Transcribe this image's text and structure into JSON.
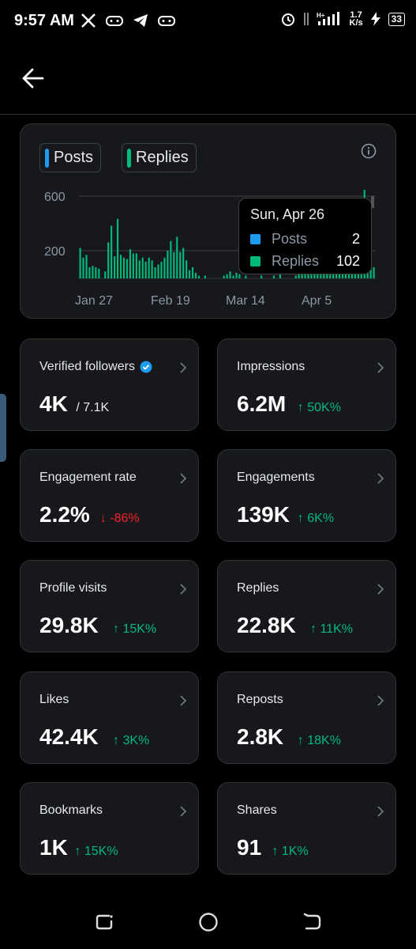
{
  "status_bar": {
    "time": "9:57 AM",
    "net_speed_top": "1.7",
    "net_speed_bottom": "K/s",
    "battery": "33"
  },
  "chart": {
    "legend": [
      {
        "label": "Posts",
        "color": "#1d9bf0"
      },
      {
        "label": "Replies",
        "color": "#00ba7c"
      }
    ],
    "tooltip": {
      "date": "Sun, Apr 26",
      "rows": [
        {
          "name": "Posts",
          "value": "2",
          "color": "#1d9bf0"
        },
        {
          "name": "Replies",
          "value": "102",
          "color": "#00ba7c"
        }
      ]
    }
  },
  "chart_data": {
    "type": "bar",
    "x_ticks": [
      "Jan 27",
      "Feb 19",
      "Mar 14",
      "Apr 5"
    ],
    "y_ticks": [
      "600",
      "200"
    ],
    "ylim": [
      0,
      700
    ],
    "series": [
      {
        "name": "Posts",
        "color": "#1d9bf0"
      },
      {
        "name": "Replies",
        "color": "#00ba7c",
        "values": [
          220,
          150,
          170,
          80,
          90,
          80,
          70,
          0,
          50,
          260,
          380,
          160,
          430,
          170,
          150,
          140,
          210,
          180,
          180,
          130,
          150,
          120,
          150,
          130,
          80,
          100,
          120,
          150,
          200,
          270,
          190,
          300,
          190,
          220,
          130,
          60,
          80,
          40,
          20,
          0,
          20,
          0,
          0,
          0,
          0,
          0,
          20,
          30,
          50,
          20,
          40,
          30,
          0,
          20,
          0,
          0,
          0,
          0,
          20,
          0,
          0,
          0,
          20,
          0,
          30,
          0,
          0,
          0,
          0,
          20,
          40,
          30,
          80,
          60,
          40,
          40,
          120,
          130,
          110,
          60,
          90,
          90,
          120,
          120,
          170,
          140,
          200,
          250,
          300,
          180,
          220,
          640,
          180,
          110,
          80
        ]
      }
    ]
  },
  "metrics": [
    {
      "label": "Verified followers",
      "value": "4K",
      "sub": "/ 7.1K",
      "trend": "none",
      "verified": true
    },
    {
      "label": "Impressions",
      "value": "6.2M",
      "sub": "50K%",
      "trend": "up"
    },
    {
      "label": "Engagement rate",
      "value": "2.2%",
      "sub": "-86%",
      "trend": "down"
    },
    {
      "label": "Engagements",
      "value": "139K",
      "sub": "6K%",
      "trend": "up"
    },
    {
      "label": "Profile visits",
      "value": "29.8K",
      "sub": "15K%",
      "trend": "up"
    },
    {
      "label": "Replies",
      "value": "22.8K",
      "sub": "11K%",
      "trend": "up"
    },
    {
      "label": "Likes",
      "value": "42.4K",
      "sub": "3K%",
      "trend": "up"
    },
    {
      "label": "Reposts",
      "value": "2.8K",
      "sub": "18K%",
      "trend": "up"
    },
    {
      "label": "Bookmarks",
      "value": "1K",
      "sub": "15K%",
      "trend": "up"
    },
    {
      "label": "Shares",
      "value": "91",
      "sub": "1K%",
      "trend": "up"
    }
  ]
}
